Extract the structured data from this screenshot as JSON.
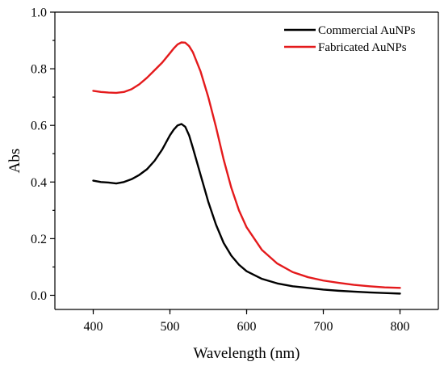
{
  "chart_data": {
    "type": "line",
    "title": "",
    "xlabel": "Wavelength (nm)",
    "ylabel": "Abs",
    "xlim": [
      350,
      850
    ],
    "ylim": [
      -0.05,
      1.0
    ],
    "xticks": [
      400,
      500,
      600,
      700,
      800
    ],
    "yticks": [
      0.0,
      0.2,
      0.4,
      0.6,
      0.8,
      1.0
    ],
    "xtick_labels": [
      "400",
      "500",
      "600",
      "700",
      "800"
    ],
    "ytick_labels": [
      "0.0",
      "0.2",
      "0.4",
      "0.6",
      "0.8",
      "1.0"
    ],
    "grid": false,
    "legend_position": "top-right",
    "series": [
      {
        "name": "Commercial AuNPs",
        "color": "#000000",
        "x": [
          400,
          410,
          420,
          430,
          440,
          450,
          460,
          470,
          480,
          490,
          500,
          505,
          510,
          515,
          520,
          525,
          530,
          540,
          550,
          560,
          570,
          580,
          590,
          600,
          620,
          640,
          660,
          680,
          700,
          720,
          740,
          760,
          780,
          800
        ],
        "y": [
          0.405,
          0.4,
          0.398,
          0.395,
          0.4,
          0.41,
          0.425,
          0.445,
          0.475,
          0.515,
          0.565,
          0.585,
          0.6,
          0.605,
          0.595,
          0.565,
          0.52,
          0.425,
          0.33,
          0.25,
          0.185,
          0.14,
          0.108,
          0.085,
          0.058,
          0.042,
          0.032,
          0.026,
          0.02,
          0.016,
          0.013,
          0.01,
          0.008,
          0.006
        ]
      },
      {
        "name": "Fabricated AuNPs",
        "color": "#e41a1c",
        "x": [
          400,
          410,
          420,
          430,
          440,
          450,
          460,
          470,
          480,
          490,
          500,
          505,
          510,
          515,
          520,
          525,
          530,
          540,
          550,
          560,
          570,
          580,
          590,
          600,
          620,
          640,
          660,
          680,
          700,
          720,
          740,
          760,
          780,
          800
        ],
        "y": [
          0.722,
          0.718,
          0.716,
          0.715,
          0.718,
          0.728,
          0.745,
          0.768,
          0.795,
          0.822,
          0.855,
          0.872,
          0.886,
          0.893,
          0.892,
          0.88,
          0.858,
          0.79,
          0.7,
          0.595,
          0.48,
          0.38,
          0.3,
          0.24,
          0.16,
          0.112,
          0.082,
          0.064,
          0.052,
          0.044,
          0.037,
          0.032,
          0.028,
          0.026
        ]
      }
    ]
  }
}
